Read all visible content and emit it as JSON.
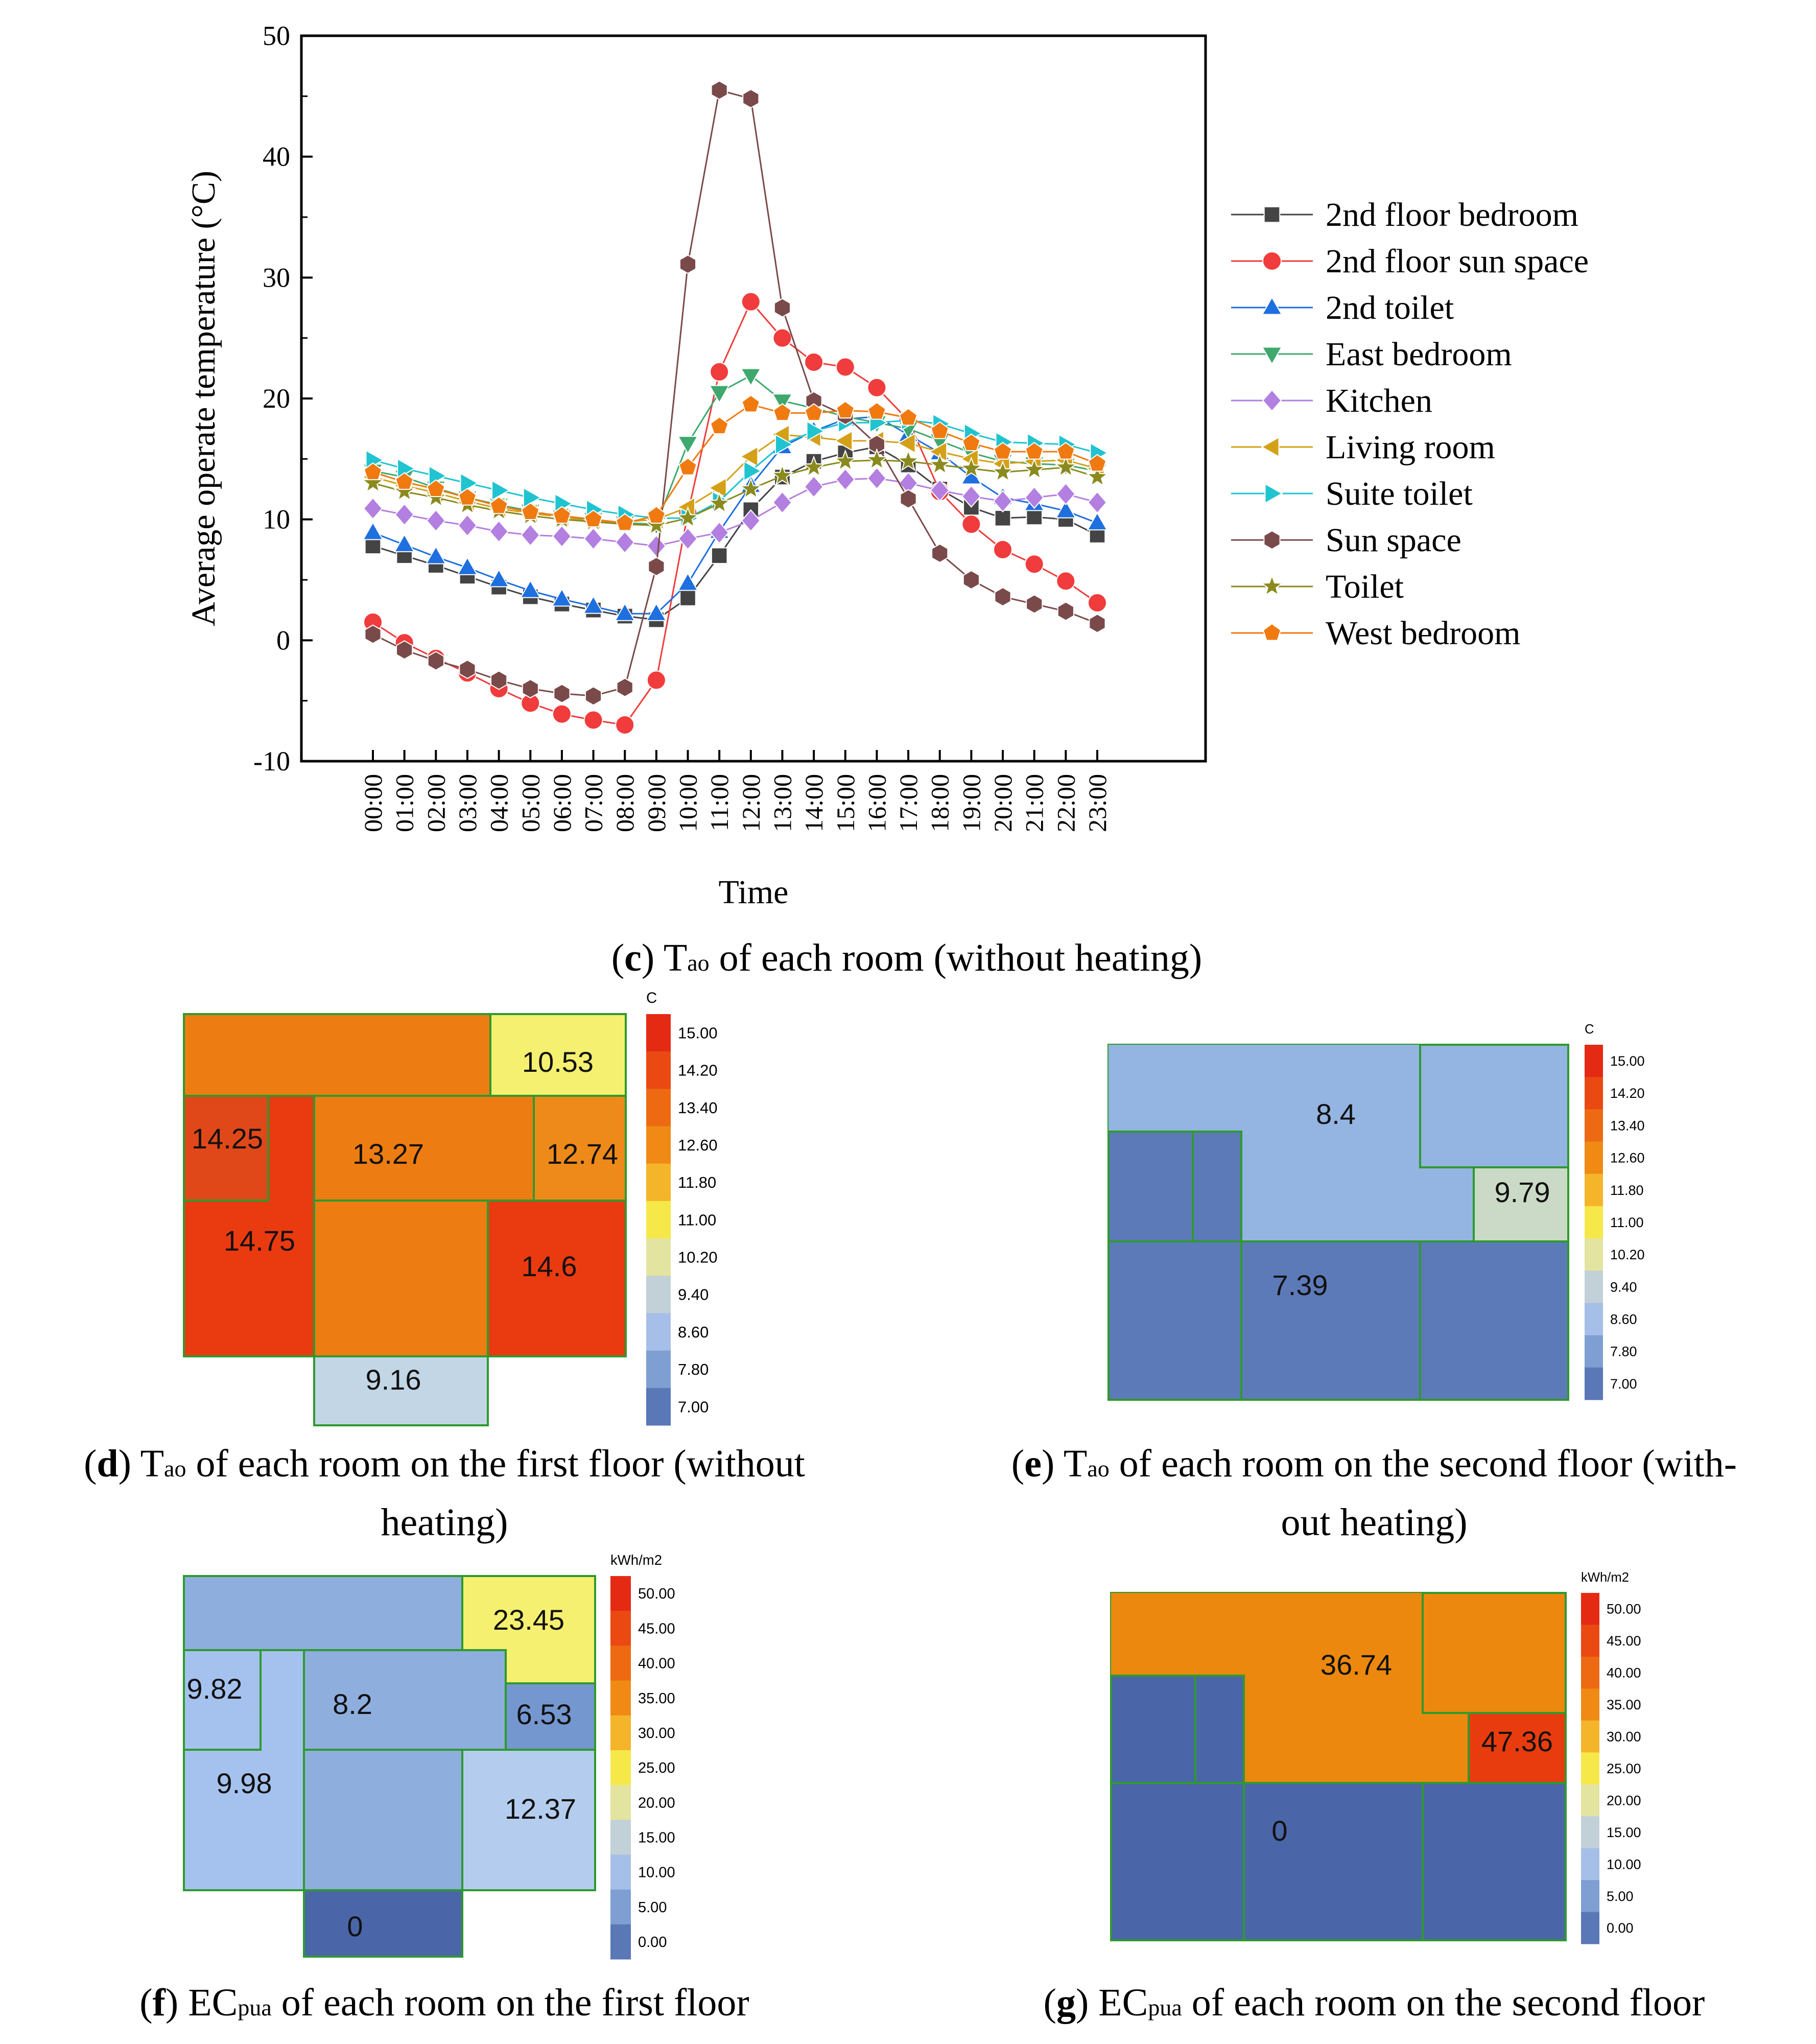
{
  "chart_data": [
    {
      "type": "line",
      "ylabel": "Average operate temperature (°C)",
      "xlabel": "Time",
      "ylim": [
        -10,
        50
      ],
      "yticks": [
        "-10",
        "0",
        "10",
        "20",
        "30",
        "40",
        "50"
      ],
      "x": [
        "00:00",
        "01:00",
        "02:00",
        "03:00",
        "04:00",
        "05:00",
        "06:00",
        "07:00",
        "08:00",
        "09:00",
        "10:00",
        "11:00",
        "12:00",
        "13:00",
        "14:00",
        "15:00",
        "16:00",
        "17:00",
        "18:00",
        "19:00",
        "20:00",
        "21:00",
        "22:00",
        "23:00"
      ],
      "series": [
        {
          "name": "2nd floor bedroom",
          "marker": "square",
          "color": "#444444",
          "values": [
            7.8,
            7.0,
            6.2,
            5.3,
            4.4,
            3.6,
            3.0,
            2.5,
            2.0,
            1.7,
            3.5,
            7.0,
            10.8,
            13.5,
            14.8,
            15.5,
            16.0,
            14.5,
            12.5,
            11.0,
            10.1,
            10.2,
            10.0,
            8.7
          ]
        },
        {
          "name": "2nd floor sun space",
          "marker": "circle",
          "color": "#f03c3c",
          "values": [
            1.5,
            -0.2,
            -1.5,
            -2.7,
            -4.0,
            -5.2,
            -6.1,
            -6.6,
            -7.0,
            -3.3,
            10.5,
            22.2,
            28.0,
            25.0,
            23.0,
            22.6,
            20.9,
            18.2,
            12.3,
            9.6,
            7.5,
            6.3,
            4.9,
            3.1
          ]
        },
        {
          "name": "2nd toilet",
          "marker": "triangle-up",
          "color": "#1e6fe0",
          "values": [
            8.9,
            7.9,
            6.9,
            6.0,
            5.0,
            4.1,
            3.4,
            2.8,
            2.2,
            2.2,
            4.7,
            9.0,
            12.8,
            16.0,
            17.3,
            18.3,
            18.5,
            17.0,
            15.5,
            13.5,
            11.8,
            11.3,
            10.7,
            9.7
          ]
        },
        {
          "name": "East bedroom",
          "marker": "triangle-down",
          "color": "#3ea86e",
          "values": [
            14.0,
            13.5,
            12.6,
            11.8,
            11.2,
            10.7,
            10.2,
            10.0,
            9.7,
            9.6,
            16.3,
            20.5,
            21.9,
            19.8,
            19.2,
            18.5,
            18.0,
            17.5,
            16.5,
            15.5,
            14.8,
            14.6,
            14.5,
            14.0
          ]
        },
        {
          "name": "Kitchen",
          "marker": "diamond",
          "color": "#b37fe0",
          "values": [
            10.9,
            10.4,
            9.9,
            9.5,
            9.0,
            8.7,
            8.6,
            8.4,
            8.1,
            7.8,
            8.4,
            8.9,
            9.9,
            11.4,
            12.7,
            13.3,
            13.4,
            13.0,
            12.4,
            11.9,
            11.5,
            11.8,
            12.1,
            11.4
          ]
        },
        {
          "name": "Living room",
          "marker": "triangle-left",
          "color": "#d4a017",
          "values": [
            13.5,
            12.8,
            12.2,
            11.5,
            10.9,
            10.5,
            10.2,
            9.8,
            9.8,
            10.0,
            11.0,
            12.6,
            15.2,
            17.0,
            16.8,
            16.5,
            16.5,
            16.3,
            15.6,
            15.0,
            14.6,
            14.8,
            14.9,
            14.2
          ]
        },
        {
          "name": "Suite toilet",
          "marker": "triangle-right",
          "color": "#20c4d0",
          "values": [
            14.9,
            14.2,
            13.6,
            13.0,
            12.4,
            11.8,
            11.3,
            10.8,
            10.4,
            10.1,
            10.1,
            11.5,
            14.0,
            16.2,
            17.3,
            18.0,
            18.0,
            18.2,
            17.9,
            17.1,
            16.4,
            16.3,
            16.2,
            15.5
          ]
        },
        {
          "name": "Sun space",
          "marker": "hexagon",
          "color": "#7a4a4a",
          "values": [
            0.5,
            -0.8,
            -1.7,
            -2.4,
            -3.3,
            -4.0,
            -4.4,
            -4.6,
            -3.9,
            6.1,
            31.1,
            45.5,
            44.8,
            27.5,
            19.8,
            18.6,
            16.2,
            11.7,
            7.2,
            5.0,
            3.6,
            3.0,
            2.4,
            1.4
          ]
        },
        {
          "name": "Toilet",
          "marker": "star",
          "color": "#8a8a1e",
          "values": [
            13.0,
            12.3,
            11.8,
            11.2,
            10.7,
            10.3,
            10.0,
            9.8,
            9.6,
            9.5,
            10.1,
            11.3,
            12.5,
            13.6,
            14.3,
            14.8,
            14.9,
            14.8,
            14.5,
            14.2,
            13.9,
            14.1,
            14.3,
            13.5
          ]
        },
        {
          "name": "West bedroom",
          "marker": "pentagon",
          "color": "#f07a10",
          "values": [
            13.9,
            13.1,
            12.5,
            11.8,
            11.1,
            10.6,
            10.3,
            10.0,
            9.7,
            10.3,
            14.3,
            17.7,
            19.5,
            18.8,
            18.8,
            19.0,
            18.9,
            18.4,
            17.3,
            16.3,
            15.6,
            15.6,
            15.6,
            14.6
          ]
        }
      ]
    },
    {
      "type": "heatmap",
      "unit": "C",
      "scale_labels": [
        "15.00",
        "14.20",
        "13.40",
        "12.60",
        "11.80",
        "11.00",
        "10.20",
        "9.40",
        "8.60",
        "7.80",
        "7.00"
      ],
      "scale_colors": [
        "#e52a14",
        "#ea4a12",
        "#ed6a12",
        "#f08a14",
        "#f4b52a",
        "#f7e84a",
        "#e3e4a0",
        "#c2d0d8",
        "#a6bfe8",
        "#7f9fd2",
        "#5a78b6"
      ],
      "room_values": [
        "10.53",
        "14.25",
        "13.27",
        "12.74",
        "14.75",
        "14.6",
        "9.16"
      ]
    },
    {
      "type": "heatmap",
      "unit": "C",
      "scale_labels": [
        "15.00",
        "14.20",
        "13.40",
        "12.60",
        "11.80",
        "11.00",
        "10.20",
        "9.40",
        "8.60",
        "7.80",
        "7.00"
      ],
      "scale_colors": [
        "#e52a14",
        "#ea4a12",
        "#ed6a12",
        "#f08a14",
        "#f4b52a",
        "#f7e84a",
        "#e3e4a0",
        "#c2d0d8",
        "#a6bfe8",
        "#7f9fd2",
        "#5a78b6"
      ],
      "room_values": [
        "8.4",
        "9.79",
        "7.39"
      ]
    },
    {
      "type": "heatmap",
      "unit": "kWh/m2",
      "scale_labels": [
        "50.00",
        "45.00",
        "40.00",
        "35.00",
        "30.00",
        "25.00",
        "20.00",
        "15.00",
        "10.00",
        "5.00",
        "0.00"
      ],
      "scale_colors": [
        "#e52a14",
        "#ea4a12",
        "#ed6a12",
        "#f08a14",
        "#f4b52a",
        "#f7e84a",
        "#e3e4a0",
        "#c2d0d8",
        "#a6bfe8",
        "#7f9fd2",
        "#5a78b6"
      ],
      "room_values": [
        "23.45",
        "9.82",
        "8.2",
        "6.53",
        "9.98",
        "12.37",
        "0"
      ]
    },
    {
      "type": "heatmap",
      "unit": "kWh/m2",
      "scale_labels": [
        "50.00",
        "45.00",
        "40.00",
        "35.00",
        "30.00",
        "25.00",
        "20.00",
        "15.00",
        "10.00",
        "5.00",
        "0.00"
      ],
      "scale_colors": [
        "#e52a14",
        "#ea4a12",
        "#ed6a12",
        "#f08a14",
        "#f4b52a",
        "#f7e84a",
        "#e3e4a0",
        "#c2d0d8",
        "#a6bfe8",
        "#7f9fd2",
        "#5a78b6"
      ],
      "room_values": [
        "36.74",
        "47.36",
        "0"
      ]
    }
  ],
  "captions": {
    "c": {
      "letter": "c",
      "pre": "T",
      "sub": "ao",
      "rest": " of each room (without heating)"
    },
    "d": {
      "letter": "d",
      "pre": "T",
      "sub": "ao",
      "rest": " of each room on the first floor (without",
      "line2": "heating)"
    },
    "e": {
      "letter": "e",
      "pre": "T",
      "sub": "ao",
      "rest": " of each room on the second floor (with-",
      "line2": "out heating)"
    },
    "f": {
      "letter": "f",
      "pre": "EC",
      "sub": "pua",
      "rest": " of each room on the first floor"
    },
    "g": {
      "letter": "g",
      "pre": "EC",
      "sub": "pua",
      "rest": " of each room on the second floor"
    }
  }
}
